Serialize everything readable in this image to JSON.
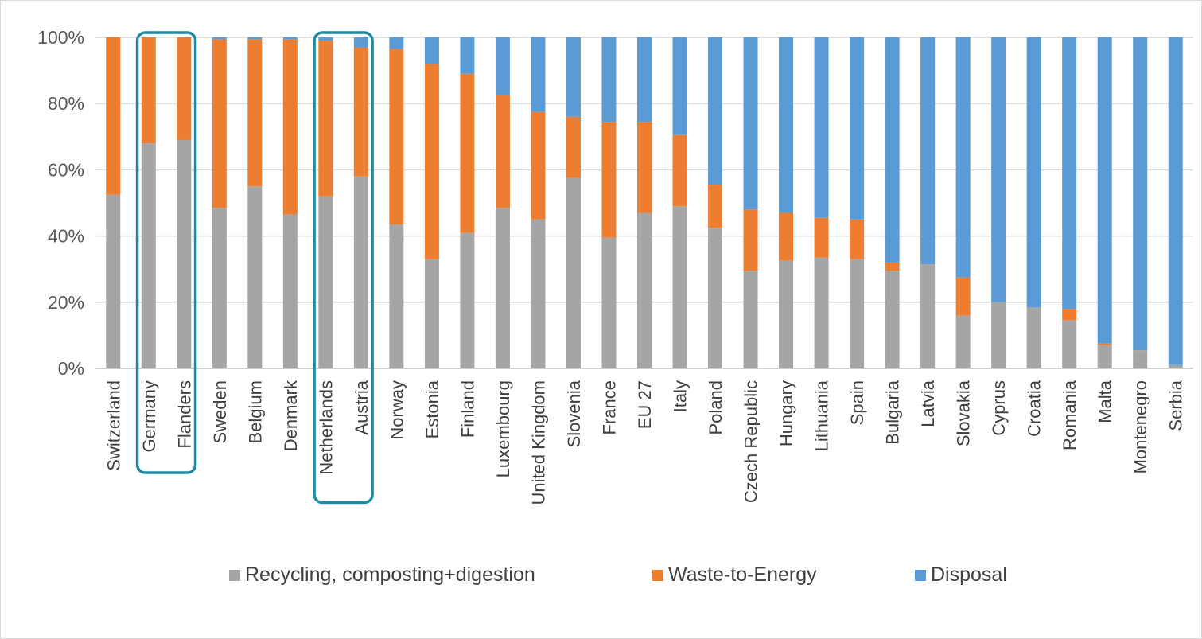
{
  "chart_data": {
    "type": "bar",
    "stacked": true,
    "categories": [
      "Switzerland",
      "Germany",
      "Flanders",
      "Sweden",
      "Belgium",
      "Denmark",
      "Netherlands",
      "Austria",
      "Norway",
      "Estonia",
      "Finland",
      "Luxembourg",
      "United Kingdom",
      "Slovenia",
      "France",
      "EU 27",
      "Italy",
      "Poland",
      "Czech Republic",
      "Hungary",
      "Lithuania",
      "Spain",
      "Bulgaria",
      "Latvia",
      "Slovakia",
      "Cyprus",
      "Croatia",
      "Romania",
      "Malta",
      "Montenegro",
      "Serbia"
    ],
    "series": [
      {
        "name": "Recycling, composting+digestion",
        "color": "#a5a5a5",
        "values": [
          52.5,
          68,
          69,
          48.5,
          55,
          46.5,
          52,
          58,
          43.5,
          33,
          41,
          48.5,
          45,
          57.5,
          39.5,
          47,
          49,
          42.5,
          29.5,
          32.5,
          33.5,
          33,
          29.5,
          31.5,
          16,
          20,
          18.5,
          14.5,
          7,
          5.5,
          1
        ]
      },
      {
        "name": "Waste-to-Energy",
        "color": "#ed7d31",
        "values": [
          47.5,
          32,
          31,
          51,
          44.5,
          53,
          47,
          39,
          53,
          59,
          48,
          34,
          32.5,
          18.5,
          35,
          27.5,
          21.5,
          13,
          18.5,
          14.5,
          12,
          12,
          2.5,
          0,
          11.5,
          0,
          0,
          3.5,
          0.5,
          0,
          0
        ]
      },
      {
        "name": "Disposal",
        "color": "#5b9bd5",
        "values": [
          0,
          0,
          0,
          0.5,
          0.5,
          0.5,
          1,
          3,
          3.5,
          8,
          11,
          17.5,
          22.5,
          24,
          25.5,
          25.5,
          29.5,
          44.5,
          52,
          53,
          54.5,
          55,
          68,
          68.5,
          72.5,
          80,
          81.5,
          82,
          92.5,
          94.5,
          99
        ]
      }
    ],
    "y_ticks": [
      "0%",
      "20%",
      "40%",
      "60%",
      "80%",
      "100%"
    ],
    "ylim": [
      0,
      100
    ],
    "grid": true,
    "legend": "bottom",
    "highlighted_groups": [
      [
        "Germany",
        "Flanders"
      ],
      [
        "Netherlands",
        "Austria"
      ]
    ],
    "highlight_color": "#1f8aa3"
  }
}
